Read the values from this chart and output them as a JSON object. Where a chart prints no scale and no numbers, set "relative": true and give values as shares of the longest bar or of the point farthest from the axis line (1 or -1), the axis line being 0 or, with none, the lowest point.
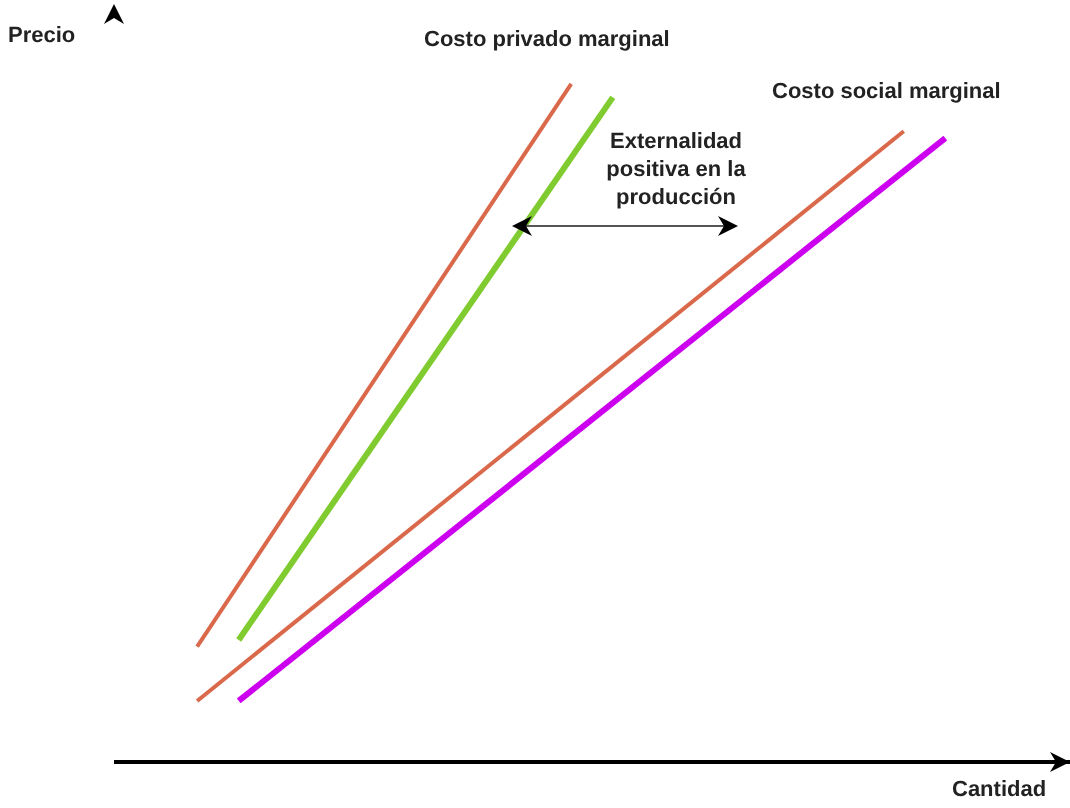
{
  "chart_data": {
    "type": "line",
    "relative": true,
    "xlabel": "Cantidad",
    "ylabel": "Precio",
    "annotations": [
      "Costo privado marginal",
      "Costo social marginal",
      "Externalidad positiva en la producción"
    ],
    "categories": [
      null,
      null,
      null,
      null,
      null,
      null,
      null,
      null,
      null,
      null,
      null,
      null,
      null,
      null,
      null,
      null,
      null,
      null,
      null,
      null,
      null,
      null,
      null,
      null
    ],
    "series": [
      {
        "color": "#d9694a",
        "values": [
          null,
          null,
          0.17,
          null,
          null,
          null,
          null,
          null,
          null,
          null,
          null,
          1,
          null,
          null,
          null,
          null,
          null,
          null,
          null,
          null,
          null,
          null,
          null,
          null
        ]
      },
      {
        "color": "#80cc30",
        "values": [
          null,
          null,
          null,
          0.18,
          null,
          null,
          null,
          null,
          null,
          null,
          null,
          null,
          0.98,
          null,
          null,
          null,
          null,
          null,
          null,
          null,
          null,
          null,
          null,
          null
        ]
      },
      {
        "color": "#d9694a",
        "values": [
          null,
          null,
          0.09,
          null,
          null,
          null,
          null,
          null,
          null,
          null,
          null,
          null,
          null,
          null,
          null,
          null,
          null,
          null,
          null,
          0.93,
          null,
          null,
          null,
          null
        ]
      },
      {
        "color": "#cc00ee",
        "values": [
          null,
          null,
          null,
          0.09,
          null,
          null,
          null,
          null,
          null,
          null,
          null,
          null,
          null,
          null,
          null,
          null,
          null,
          null,
          null,
          null,
          0.92,
          null,
          null,
          null
        ]
      }
    ]
  }
}
